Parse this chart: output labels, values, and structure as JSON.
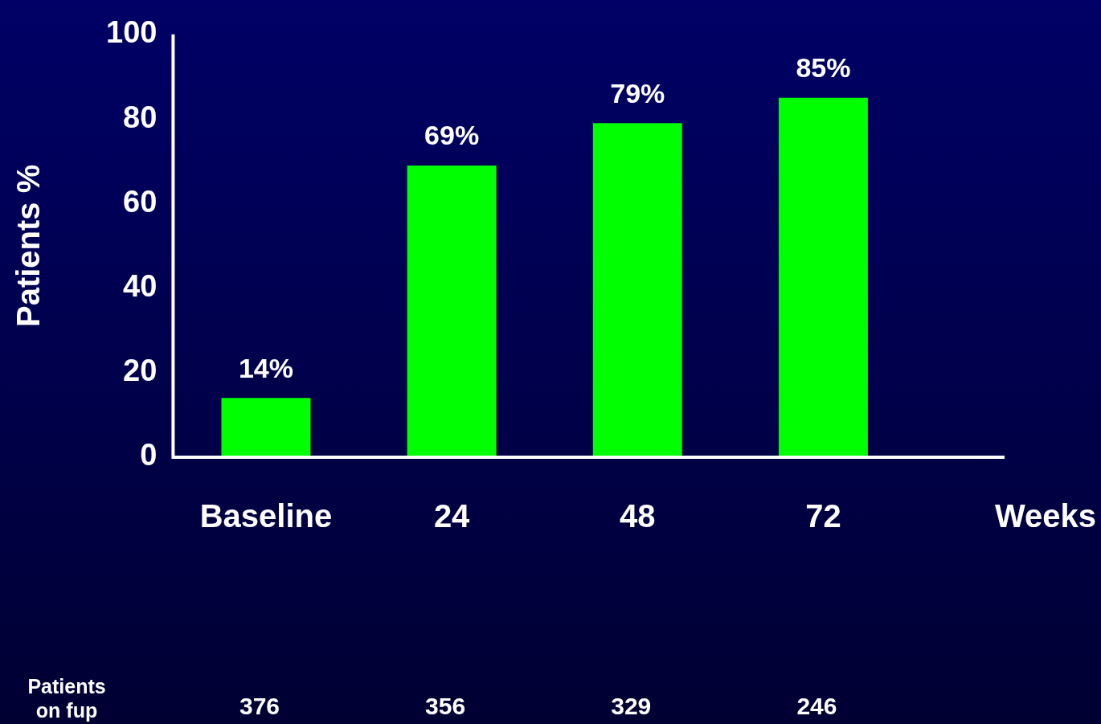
{
  "chart_data": {
    "type": "bar",
    "categories": [
      "Baseline",
      "24",
      "48",
      "72"
    ],
    "values": [
      14,
      69,
      79,
      85
    ],
    "value_labels": [
      "14%",
      "69%",
      "79%",
      "85%"
    ],
    "color": "#00ff00",
    "xlabel": "Weeks",
    "ylabel": "Patients %",
    "ylim": [
      0,
      100
    ],
    "yticks": [
      0,
      20,
      40,
      60,
      80,
      100
    ],
    "grid": false,
    "legend": false,
    "annotations": [
      "Patients on fup",
      "376",
      "356",
      "329",
      "246"
    ]
  }
}
